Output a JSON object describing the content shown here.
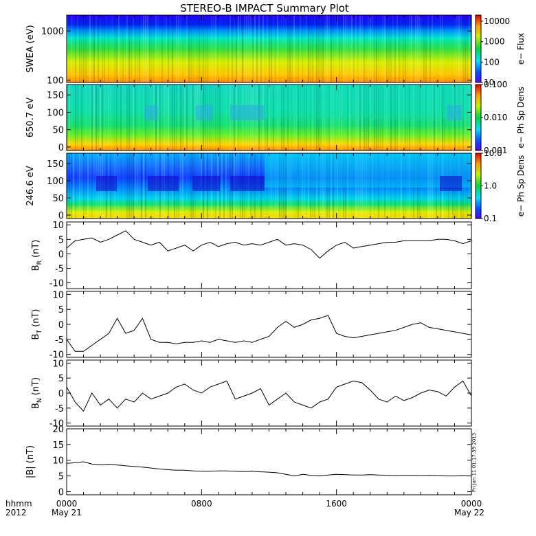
{
  "title": "STEREO-B IMPACT Summary Plot",
  "x_axis": {
    "tick_labels": [
      "0000",
      "0800",
      "1600",
      "0000"
    ],
    "row_label": "hhmm",
    "year_label": "2012",
    "start_date": "May 21",
    "end_date": "May 22"
  },
  "stamp_text": "Fri Jan 11 01:17:59 2013",
  "chart_data": [
    {
      "type": "heatmap",
      "id": "swea",
      "ylabel": "SWEA (eV)",
      "yscale": "log",
      "ylim": [
        90,
        2100
      ],
      "yticks": [
        "1000",
        "100"
      ],
      "ytick_values": [
        1000,
        100
      ],
      "colorbar": {
        "label": "e− Flux",
        "scale": "log",
        "range": [
          10,
          20000
        ],
        "tick_labels": [
          "10000",
          "1000",
          "100",
          "10"
        ],
        "tick_values": [
          10000,
          1000,
          100,
          10
        ]
      }
    },
    {
      "type": "heatmap",
      "id": "pad650",
      "ylabel": "650.7 eV",
      "yscale": "linear",
      "ylim": [
        -10,
        180
      ],
      "yticks": [
        "150",
        "100",
        "50",
        "0"
      ],
      "ytick_values": [
        150,
        100,
        50,
        0
      ],
      "colorbar": {
        "label": "e− Ph Sp Dens",
        "scale": "log",
        "range": [
          0.001,
          0.1
        ],
        "tick_labels": [
          "0.100",
          "0.010",
          "0.001"
        ],
        "tick_values": [
          0.1,
          0.01,
          0.001
        ]
      }
    },
    {
      "type": "heatmap",
      "id": "pad246",
      "ylabel": "246.6 eV",
      "yscale": "linear",
      "ylim": [
        -10,
        180
      ],
      "yticks": [
        "150",
        "100",
        "50",
        "0"
      ],
      "ytick_values": [
        150,
        100,
        50,
        0
      ],
      "colorbar": {
        "label": "e− Ph Sp Dens",
        "scale": "log",
        "range": [
          0.1,
          10
        ],
        "tick_labels": [
          "10.0",
          "1.0",
          "0.1"
        ],
        "tick_values": [
          10,
          1,
          0.1
        ]
      }
    },
    {
      "type": "line",
      "id": "br",
      "ylabel_main": "B",
      "ylabel_sub": "R",
      "ylabel_unit": " (nT)",
      "ylim": [
        -12,
        11
      ],
      "yticks": [
        "10",
        "5",
        "0",
        "-5",
        "-10"
      ],
      "ytick_values": [
        10,
        5,
        0,
        -5,
        -10
      ],
      "x": [
        0,
        0.5,
        1,
        1.5,
        2,
        2.5,
        3,
        3.5,
        4,
        4.5,
        5,
        5.5,
        6,
        6.5,
        7,
        7.5,
        8,
        8.5,
        9,
        9.5,
        10,
        10.5,
        11,
        11.5,
        12,
        12.5,
        13,
        13.5,
        14,
        14.5,
        15,
        15.5,
        16,
        16.5,
        17,
        17.5,
        18,
        18.5,
        19,
        19.5,
        20,
        20.5,
        21,
        21.5,
        22,
        22.5,
        23,
        23.5,
        24
      ],
      "values": [
        2,
        4.5,
        5,
        5.5,
        4,
        5,
        6.5,
        8,
        5,
        4,
        3,
        4,
        1,
        2,
        3,
        1,
        3,
        4,
        2.5,
        3.5,
        4,
        3,
        3.5,
        3,
        4,
        5,
        3,
        3.5,
        3,
        1.5,
        -1.5,
        1,
        3,
        4,
        2,
        2.5,
        3,
        3.5,
        4,
        4,
        4.5,
        4.5,
        4.5,
        4.5,
        5,
        5,
        4.5,
        3.5,
        4.5
      ]
    },
    {
      "type": "line",
      "id": "bt",
      "ylabel_main": "B",
      "ylabel_sub": "T",
      "ylabel_unit": " (nT)",
      "ylim": [
        -11,
        11
      ],
      "yticks": [
        "10",
        "5",
        "0",
        "-5",
        "-10"
      ],
      "ytick_values": [
        10,
        5,
        0,
        -5,
        -10
      ],
      "x": [
        0,
        0.5,
        1,
        1.5,
        2,
        2.5,
        3,
        3.5,
        4,
        4.5,
        5,
        5.5,
        6,
        6.5,
        7,
        7.5,
        8,
        8.5,
        9,
        9.5,
        10,
        10.5,
        11,
        11.5,
        12,
        12.5,
        13,
        13.5,
        14,
        14.5,
        15,
        15.5,
        16,
        16.5,
        17,
        17.5,
        18,
        18.5,
        19,
        19.5,
        20,
        20.5,
        21,
        21.5,
        22,
        22.5,
        23,
        23.5,
        24
      ],
      "values": [
        -5,
        -9,
        -9,
        -7,
        -5,
        -3,
        2,
        -3,
        -2,
        2,
        -5,
        -6,
        -6,
        -6.5,
        -6,
        -6,
        -5.5,
        -6,
        -5,
        -5.5,
        -6,
        -5.5,
        -6,
        -5,
        -4,
        -1,
        1,
        -1,
        0,
        1.5,
        2,
        3,
        -3,
        -4,
        -4.5,
        -4,
        -3.5,
        -3,
        -2.5,
        -2,
        -1,
        0,
        0.5,
        -1,
        -1.5,
        -2,
        -2.5,
        -3,
        -3.5
      ]
    },
    {
      "type": "line",
      "id": "bn",
      "ylabel_main": "B",
      "ylabel_sub": "N",
      "ylabel_unit": " (nT)",
      "ylim": [
        -11,
        11
      ],
      "yticks": [
        "10",
        "5",
        "0",
        "-5",
        "-10"
      ],
      "ytick_values": [
        10,
        5,
        0,
        -5,
        -10
      ],
      "x": [
        0,
        0.5,
        1,
        1.5,
        2,
        2.5,
        3,
        3.5,
        4,
        4.5,
        5,
        5.5,
        6,
        6.5,
        7,
        7.5,
        8,
        8.5,
        9,
        9.5,
        10,
        10.5,
        11,
        11.5,
        12,
        12.5,
        13,
        13.5,
        14,
        14.5,
        15,
        15.5,
        16,
        16.5,
        17,
        17.5,
        18,
        18.5,
        19,
        19.5,
        20,
        20.5,
        21,
        21.5,
        22,
        22.5,
        23,
        23.5,
        24
      ],
      "values": [
        2,
        -3,
        -6,
        0,
        -4,
        -2,
        -5,
        -2,
        -3,
        0,
        -2,
        -1,
        0,
        2,
        3,
        1,
        0,
        2,
        3,
        4,
        -2,
        -1,
        0,
        1.5,
        -4,
        -2,
        0,
        -3,
        -4,
        -5,
        -3,
        -2,
        2,
        3,
        4,
        3.5,
        1,
        -2,
        -3,
        -1,
        -2.5,
        -1.5,
        0,
        1,
        0.5,
        -1,
        2,
        4,
        -1
      ]
    },
    {
      "type": "line",
      "id": "btot",
      "ylabel": "|B| (nT)",
      "ylim": [
        -1,
        20
      ],
      "yticks": [
        "20",
        "15",
        "10",
        "5",
        "0"
      ],
      "ytick_values": [
        20,
        15,
        10,
        5,
        0
      ],
      "x": [
        0,
        0.5,
        1,
        1.5,
        2,
        2.5,
        3,
        3.5,
        4,
        4.5,
        5,
        5.5,
        6,
        6.5,
        7,
        7.5,
        8,
        8.5,
        9,
        9.5,
        10,
        10.5,
        11,
        11.5,
        12,
        12.5,
        13,
        13.5,
        14,
        14.5,
        15,
        15.5,
        16,
        16.5,
        17,
        17.5,
        18,
        18.5,
        19,
        19.5,
        20,
        20.5,
        21,
        21.5,
        22,
        22.5,
        23,
        23.5,
        24
      ],
      "values": [
        9,
        9.2,
        9.5,
        8.8,
        8.5,
        8.7,
        8.5,
        8.2,
        8,
        7.8,
        7.5,
        7.2,
        7,
        6.8,
        6.8,
        6.6,
        6.5,
        6.5,
        6.6,
        6.6,
        6.5,
        6.4,
        6.5,
        6.3,
        6.2,
        6,
        5.5,
        5,
        5.5,
        5.2,
        5,
        5.3,
        5.5,
        5.4,
        5.3,
        5.3,
        5.4,
        5.3,
        5.2,
        5.1,
        5.2,
        5.2,
        5.1,
        5.2,
        5.1,
        5,
        5,
        5.1,
        5
      ]
    }
  ]
}
